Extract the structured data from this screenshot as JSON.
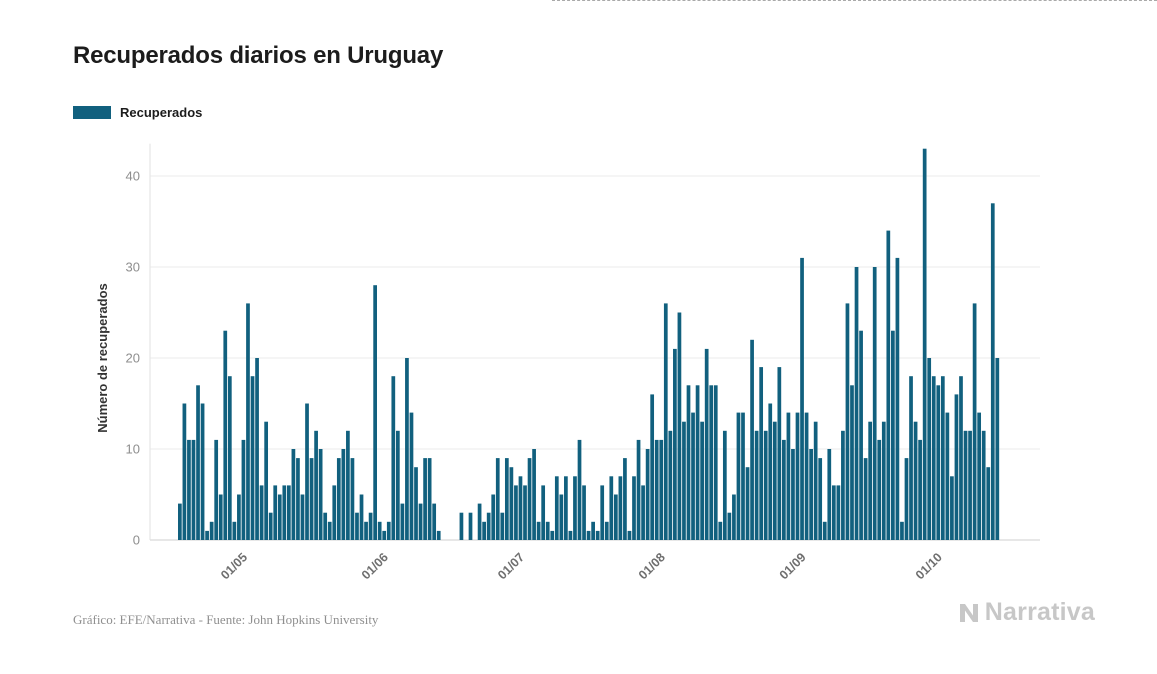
{
  "header": {
    "title": "Recuperados diarios en Uruguay"
  },
  "legend": {
    "label": "Recuperados"
  },
  "footer": {
    "credit": "Gráfico: EFE/Narrativa - Fuente: John Hopkins University",
    "logo_text": "Narrativa"
  },
  "colors": {
    "bar": "#11607e",
    "grid": "#ebebeb",
    "baseline": "#cfcfcf",
    "axis_line": "#e2e2e2",
    "y_tick_text": "#8e8e8e",
    "x_tick_text": "#6f6f6f",
    "axis_label_text": "#333333",
    "title_text": "#1c1c1c",
    "footer_text": "#8f8f8f",
    "logo": "#c7c7c7"
  },
  "chart_data": {
    "type": "bar",
    "title": "Recuperados diarios en Uruguay",
    "xlabel": "",
    "ylabel": "Número de recuperados",
    "ylim": [
      0,
      44
    ],
    "y_ticks": [
      0,
      10,
      20,
      30,
      40
    ],
    "grid": true,
    "legend_position": "top-left",
    "x_ticks": [
      {
        "label": "01/05",
        "index": 15
      },
      {
        "label": "01/06",
        "index": 46
      },
      {
        "label": "01/07",
        "index": 76
      },
      {
        "label": "01/08",
        "index": 107
      },
      {
        "label": "01/09",
        "index": 138
      },
      {
        "label": "01/10",
        "index": 168
      }
    ],
    "series": [
      {
        "name": "Recuperados",
        "values": [
          4,
          15,
          11,
          11,
          17,
          15,
          1,
          2,
          11,
          5,
          23,
          18,
          2,
          5,
          11,
          26,
          18,
          20,
          6,
          13,
          3,
          6,
          5,
          6,
          6,
          10,
          9,
          5,
          15,
          9,
          12,
          10,
          3,
          2,
          6,
          9,
          10,
          12,
          9,
          3,
          5,
          2,
          3,
          28,
          2,
          1,
          2,
          18,
          12,
          4,
          20,
          14,
          8,
          4,
          9,
          9,
          4,
          1,
          0,
          0,
          0,
          0,
          3,
          0,
          3,
          0,
          4,
          2,
          3,
          5,
          9,
          3,
          9,
          8,
          6,
          7,
          6,
          9,
          10,
          2,
          6,
          2,
          1,
          7,
          5,
          7,
          1,
          7,
          11,
          6,
          1,
          2,
          1,
          6,
          2,
          7,
          5,
          7,
          9,
          1,
          7,
          11,
          6,
          10,
          16,
          11,
          11,
          26,
          12,
          21,
          25,
          13,
          17,
          14,
          17,
          13,
          21,
          17,
          17,
          2,
          12,
          3,
          5,
          14,
          14,
          8,
          22,
          12,
          19,
          12,
          15,
          13,
          19,
          11,
          14,
          10,
          14,
          31,
          14,
          10,
          13,
          9,
          2,
          10,
          6,
          6,
          12,
          26,
          17,
          30,
          23,
          9,
          13,
          30,
          11,
          13,
          34,
          23,
          31,
          2,
          9,
          18,
          13,
          11,
          43,
          20,
          18,
          17,
          18,
          14,
          7,
          16,
          18,
          12,
          12,
          26,
          14,
          12,
          8,
          37,
          20
        ]
      }
    ]
  }
}
